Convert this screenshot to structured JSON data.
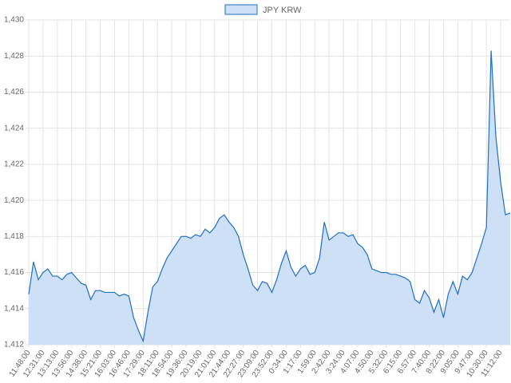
{
  "chart_data": {
    "type": "area",
    "categories": [
      "11:48:00",
      null,
      null,
      "12:31:00",
      null,
      null,
      "13:13:00",
      null,
      null,
      "13:56:00",
      null,
      null,
      "14:38:00",
      null,
      null,
      "15:21:00",
      null,
      null,
      "16:03:00",
      null,
      null,
      "16:46:00",
      null,
      null,
      "17:29:00",
      null,
      null,
      "18:11:00",
      null,
      null,
      "18:54:00",
      null,
      null,
      "19:36:00",
      null,
      null,
      "20:19:00",
      null,
      null,
      "21:01:00",
      null,
      null,
      "21:44:00",
      null,
      null,
      "22:27:00",
      null,
      null,
      "23:09:00",
      null,
      null,
      "23:52:00",
      null,
      null,
      "0:34:00",
      null,
      null,
      "1:17:00",
      null,
      null,
      "1:59:00",
      null,
      null,
      "2:42:00",
      null,
      null,
      "3:24:00",
      null,
      null,
      "4:07:00",
      null,
      null,
      "4:50:00",
      null,
      null,
      "5:32:00",
      null,
      null,
      "6:15:00",
      null,
      null,
      "6:57:00",
      null,
      null,
      "7:40:00",
      null,
      null,
      "8:22:00",
      null,
      null,
      "9:05:00",
      null,
      null,
      "9:47:00",
      null,
      null,
      "10:30:00",
      null,
      null,
      "11:12:00",
      null,
      null
    ],
    "series": [
      {
        "name": "JPY KRW",
        "color": "#1f6fc5",
        "fill_color": "#cde0f5",
        "values": [
          1414.8,
          1416.6,
          1415.6,
          1416.0,
          1416.2,
          1415.8,
          1415.8,
          1415.6,
          1415.9,
          1416.0,
          1415.7,
          1415.4,
          1415.3,
          1414.5,
          1415.0,
          1415.0,
          1414.9,
          1414.9,
          1414.9,
          1414.7,
          1414.8,
          1414.7,
          1413.5,
          1412.8,
          1412.2,
          1413.8,
          1415.2,
          1415.5,
          1416.2,
          1416.8,
          1417.2,
          1417.6,
          1418.0,
          1418.0,
          1417.9,
          1418.1,
          1418.0,
          1418.4,
          1418.2,
          1418.5,
          1419.0,
          1419.2,
          1418.8,
          1418.5,
          1418.0,
          1417.0,
          1416.2,
          1415.3,
          1415.0,
          1415.5,
          1415.4,
          1414.9,
          1415.6,
          1416.5,
          1417.2,
          1416.3,
          1415.8,
          1416.2,
          1416.4,
          1415.9,
          1416.0,
          1416.8,
          1418.8,
          1417.8,
          1418.0,
          1418.2,
          1418.2,
          1418.0,
          1418.1,
          1417.6,
          1417.4,
          1417.0,
          1416.2,
          1416.1,
          1416.0,
          1416.0,
          1415.9,
          1415.9,
          1415.8,
          1415.7,
          1415.5,
          1414.5,
          1414.3,
          1415.0,
          1414.6,
          1413.8,
          1414.5,
          1413.5,
          1414.8,
          1415.5,
          1414.8,
          1415.8,
          1415.6,
          1416.0,
          1416.8,
          1417.6,
          1418.5,
          1428.3,
          1423.5,
          1421.0,
          1419.2,
          1419.3
        ]
      }
    ],
    "ylim": [
      1412,
      1430
    ],
    "yticks": [
      {
        "value": 1412,
        "label": "1,412"
      },
      {
        "value": 1414,
        "label": "1,414"
      },
      {
        "value": 1416,
        "label": "1,416"
      },
      {
        "value": 1418,
        "label": "1,418"
      },
      {
        "value": 1420,
        "label": "1,420"
      },
      {
        "value": 1422,
        "label": "1,422"
      },
      {
        "value": 1424,
        "label": "1,424"
      },
      {
        "value": 1426,
        "label": "1,426"
      },
      {
        "value": 1428,
        "label": "1,428"
      },
      {
        "value": 1430,
        "label": "1,430"
      }
    ],
    "grid": true,
    "legend": "top"
  }
}
